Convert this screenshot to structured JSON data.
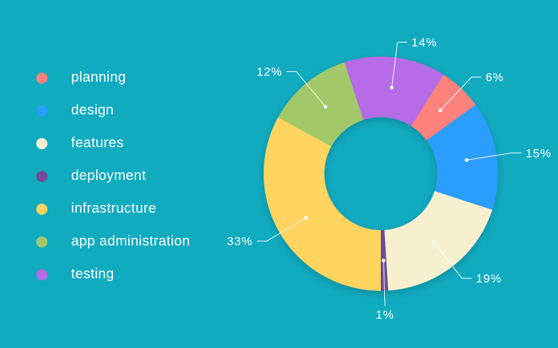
{
  "chart_data": {
    "type": "pie",
    "variant": "donut",
    "legend_position": "left",
    "start_angle_deg": 180,
    "direction": "clockwise",
    "series": [
      {
        "name": "infrastructure",
        "value": 33,
        "label": "33%",
        "color": "#ffd45e"
      },
      {
        "name": "app administration",
        "value": 12,
        "label": "12%",
        "color": "#a2c86b"
      },
      {
        "name": "testing",
        "value": 14,
        "label": "14%",
        "color": "#b56ce6"
      },
      {
        "name": "planning",
        "value": 6,
        "label": "6%",
        "color": "#fd817d"
      },
      {
        "name": "design",
        "value": 15,
        "label": "15%",
        "color": "#2a9dfd"
      },
      {
        "name": "features",
        "value": 19,
        "label": "19%",
        "color": "#f7f0cf"
      },
      {
        "name": "deployment",
        "value": 1,
        "label": "1%",
        "color": "#6f4b9a"
      }
    ]
  },
  "legend": [
    {
      "label": "planning",
      "color": "#fd817d"
    },
    {
      "label": "design",
      "color": "#2a9dfd"
    },
    {
      "label": "features",
      "color": "#f7f0cf"
    },
    {
      "label": "deployment",
      "color": "#6f4b9a"
    },
    {
      "label": "infrastructure",
      "color": "#ffd45e"
    },
    {
      "label": "app administration",
      "color": "#a2c86b"
    },
    {
      "label": "testing",
      "color": "#b56ce6"
    }
  ]
}
